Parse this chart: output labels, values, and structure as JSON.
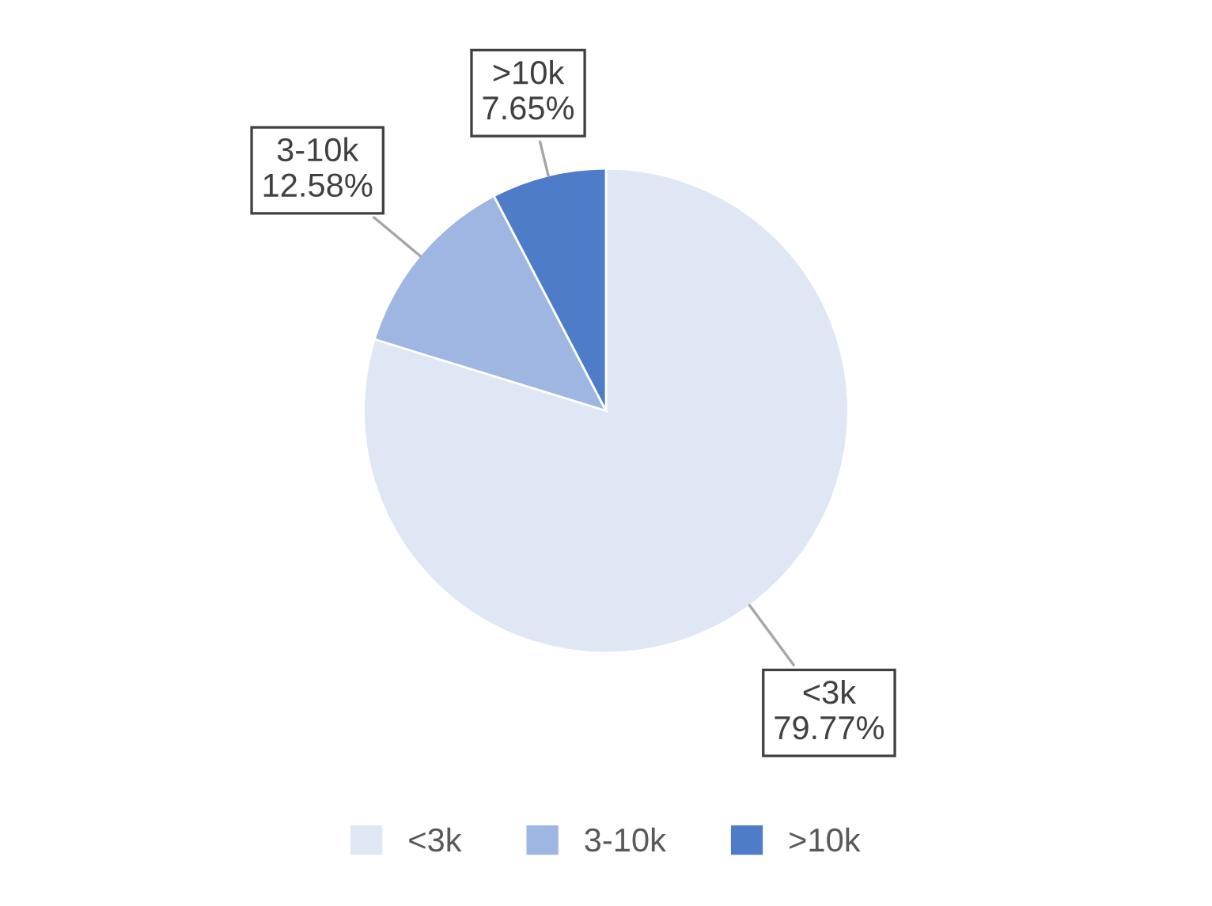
{
  "chart_data": {
    "type": "pie",
    "categories": [
      "<3k",
      "3-10k",
      ">10k"
    ],
    "values": [
      79.77,
      12.58,
      7.65
    ],
    "value_labels": [
      "79.77%",
      "12.58%",
      "7.65%"
    ],
    "colors": [
      "#dfe7f5",
      "#9fb6e2",
      "#4f7cc9"
    ],
    "legend": "bottom"
  }
}
